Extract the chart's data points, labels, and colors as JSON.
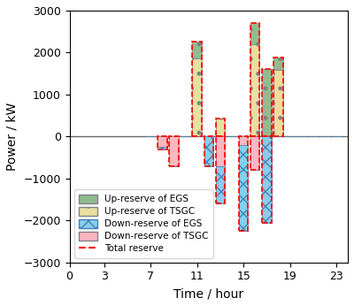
{
  "hours": [
    7,
    8,
    9,
    10,
    11,
    12,
    13,
    14,
    15,
    16,
    17,
    18,
    19,
    20,
    21,
    22,
    23
  ],
  "up_egs": [
    0,
    0,
    0,
    0,
    400,
    0,
    0,
    0,
    0,
    500,
    1600,
    300,
    0,
    0,
    0,
    0,
    0
  ],
  "up_tsgc": [
    0,
    0,
    0,
    0,
    1870,
    0,
    420,
    0,
    0,
    2200,
    0,
    1580,
    0,
    0,
    0,
    0,
    0
  ],
  "down_egs": [
    0,
    -50,
    0,
    0,
    0,
    -700,
    -900,
    0,
    -2050,
    0,
    -2050,
    0,
    0,
    0,
    0,
    0,
    0
  ],
  "down_tsgc": [
    0,
    -250,
    -700,
    0,
    0,
    0,
    -700,
    0,
    -200,
    -800,
    0,
    0,
    0,
    0,
    0,
    0,
    0
  ],
  "bar_width": 0.8,
  "color_up_egs": "#8fbc8f",
  "color_up_tsgc": "#e8dfa0",
  "color_down_egs": "#87ceeb",
  "color_down_tsgc": "#ffb6c1",
  "color_total": "#ff0000",
  "hatch_up_egs": ".",
  "hatch_up_tsgc": ".",
  "hatch_down_egs": "xx",
  "hatch_down_tsgc": "",
  "xlim": [
    0,
    24
  ],
  "ylim": [
    -3000,
    3000
  ],
  "xticks": [
    0,
    3,
    7,
    11,
    15,
    19,
    23
  ],
  "yticks": [
    -3000,
    -2000,
    -1000,
    0,
    1000,
    2000,
    3000
  ],
  "xlabel": "Time / hour",
  "ylabel": "Power / kW",
  "legend_labels": [
    "Up-reserve of EGS",
    "Up-reserve of TSGC",
    "Down-reserve of EGS",
    "Down-reserve of TSGC",
    "Total reserve"
  ]
}
